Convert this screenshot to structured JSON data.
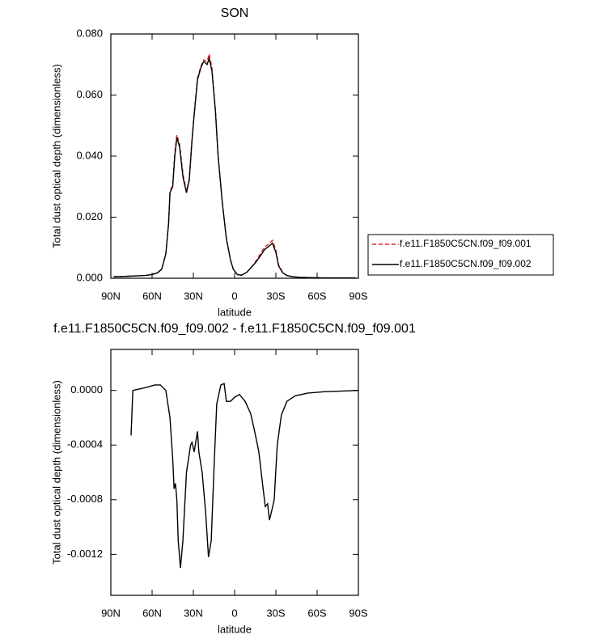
{
  "chart_data": [
    {
      "type": "line",
      "title": "SON",
      "x_label": "latitude",
      "y_label": "Total dust optical depth (dimensionless)",
      "xlim": [
        90,
        -90
      ],
      "xticks": [
        {
          "value": 90,
          "label": "90N"
        },
        {
          "value": 60,
          "label": "60N"
        },
        {
          "value": 30,
          "label": "30N"
        },
        0,
        {
          "value": -30,
          "label": "30S"
        },
        {
          "value": -60,
          "label": "60S"
        },
        {
          "value": -90,
          "label": "90S"
        }
      ],
      "ylim": [
        0,
        0.08
      ],
      "yticks": [
        {
          "value": 0,
          "label": "0.000"
        },
        {
          "value": 0.02,
          "label": "0.020"
        },
        {
          "value": 0.04,
          "label": "0.040"
        },
        {
          "value": 0.06,
          "label": "0.060"
        },
        {
          "value": 0.08,
          "label": "0.080"
        }
      ],
      "legend": "right",
      "x": [
        88,
        80,
        70,
        65,
        60,
        56,
        53,
        50,
        48,
        47,
        45,
        43.5,
        42,
        40,
        37.5,
        35,
        33,
        31,
        29.5,
        27,
        24.5,
        22.5,
        20,
        18.5,
        16.5,
        14,
        12,
        9,
        6,
        3,
        1,
        -2,
        -5,
        -9,
        -12,
        -15,
        -19,
        -22,
        -25,
        -27.5,
        -30,
        -32,
        -35,
        -38,
        -42,
        -47,
        -55,
        -65,
        -75,
        -88
      ],
      "series": [
        {
          "name": "f.e11.F1850C5CN.f09_f09.001",
          "color": "#e8201f",
          "style": "dashed",
          "values": [
            0.0005,
            0.0006,
            0.0008,
            0.0009,
            0.0012,
            0.0018,
            0.003,
            0.008,
            0.018,
            0.028,
            0.031,
            0.041,
            0.047,
            0.044,
            0.034,
            0.0285,
            0.0325,
            0.0455,
            0.0535,
            0.0655,
            0.0695,
            0.0715,
            0.071,
            0.0735,
            0.069,
            0.0555,
            0.0405,
            0.025,
            0.013,
            0.006,
            0.003,
            0.0012,
            0.001,
            0.002,
            0.0036,
            0.0053,
            0.0082,
            0.0103,
            0.0113,
            0.0124,
            0.0093,
            0.0044,
            0.0019,
            0.0009,
            0.0005,
            0.0003,
            0.0002,
            0.0001,
            0.0001,
            0.0001
          ]
        },
        {
          "name": "f.e11.F1850C5CN.f09_f09.002",
          "color": "#000000",
          "style": "solid",
          "values": [
            0.0005,
            0.0006,
            0.0008,
            0.0009,
            0.0012,
            0.0018,
            0.003,
            0.008,
            0.018,
            0.028,
            0.03,
            0.04,
            0.046,
            0.043,
            0.033,
            0.028,
            0.032,
            0.045,
            0.053,
            0.065,
            0.069,
            0.071,
            0.07,
            0.072,
            0.068,
            0.055,
            0.04,
            0.025,
            0.013,
            0.006,
            0.003,
            0.0012,
            0.001,
            0.002,
            0.0035,
            0.005,
            0.0075,
            0.0095,
            0.0105,
            0.0115,
            0.0085,
            0.004,
            0.0018,
            0.0009,
            0.0005,
            0.0003,
            0.0002,
            0.0001,
            0.0001,
            0.0001
          ]
        }
      ]
    },
    {
      "type": "line",
      "title": "f.e11.F1850C5CN.f09_f09.002 - f.e11.F1850C5CN.f09_f09.001",
      "x_label": "latitude",
      "y_label": "Total dust optical depth (dimensionless)",
      "xlim": [
        90,
        -90
      ],
      "xticks": [
        {
          "value": 90,
          "label": "90N"
        },
        {
          "value": 60,
          "label": "60N"
        },
        {
          "value": 30,
          "label": "30N"
        },
        0,
        {
          "value": -30,
          "label": "30S"
        },
        {
          "value": -60,
          "label": "60S"
        },
        {
          "value": -90,
          "label": "90S"
        }
      ],
      "ylim": [
        -0.0015,
        0.0003
      ],
      "yticks": [
        {
          "value": -0.0012,
          "label": "-0.0012"
        },
        {
          "value": -0.0008,
          "label": "-0.0008"
        },
        {
          "value": -0.0004,
          "label": "-0.0004"
        },
        {
          "value": 0,
          "label": "0.0000"
        }
      ],
      "x": [
        75.3,
        74,
        65,
        58,
        54,
        50,
        47,
        45,
        44,
        43,
        42,
        41,
        39.4,
        37.6,
        35,
        32,
        31,
        29.4,
        27,
        26,
        23.6,
        21,
        19,
        17,
        14.7,
        13,
        10,
        7.6,
        6,
        3,
        0,
        -3.5,
        -7.6,
        -11.7,
        -15,
        -17.6,
        -20.5,
        -22.3,
        -24,
        -25.3,
        -27,
        -28.8,
        -31,
        -34,
        -38,
        -44,
        -53,
        -65,
        -90
      ],
      "series": [
        {
          "color": "#000000",
          "style": "solid",
          "values": [
            -0.00033,
            0,
            2e-05,
            4e-05,
            4e-05,
            0,
            -0.0002,
            -0.0005,
            -0.00072,
            -0.00068,
            -0.0008,
            -0.0011,
            -0.0013,
            -0.0011,
            -0.0006,
            -0.0004,
            -0.00038,
            -0.00045,
            -0.0003,
            -0.00045,
            -0.0006,
            -0.0009,
            -0.00122,
            -0.0011,
            -0.0005,
            -0.0001,
            4e-05,
            5e-05,
            -8e-05,
            -8e-05,
            -5e-05,
            -3e-05,
            -8e-05,
            -0.00017,
            -0.00032,
            -0.00045,
            -0.0007,
            -0.00085,
            -0.00083,
            -0.00095,
            -0.00088,
            -0.0008,
            -0.0004,
            -0.00018,
            -8e-05,
            -4e-05,
            -2e-05,
            -1e-05,
            0
          ]
        }
      ]
    }
  ]
}
